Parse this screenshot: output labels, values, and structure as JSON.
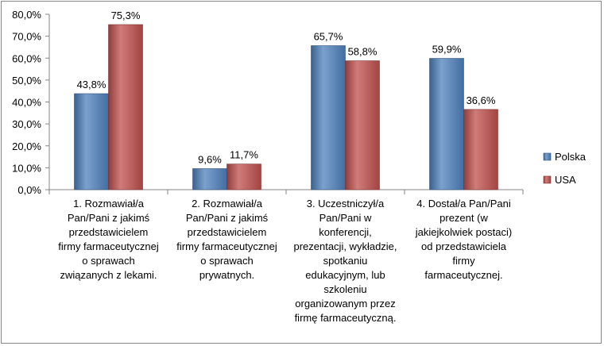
{
  "chart_data": {
    "type": "bar",
    "categories": [
      [
        "1. Rozmawiał/a",
        "Pan/Pani z jakimś",
        "przedstawicielem",
        "firmy farmaceutycznej",
        "o sprawach",
        "związanych z lekami."
      ],
      [
        "2. Rozmawiał/a",
        "Pan/Pani z jakimś",
        "przedstawicielem",
        "firmy farmaceutycznej",
        "o sprawach",
        "prywatnych."
      ],
      [
        "3. Uczestniczył/a",
        "Pan/Pani w",
        "konferencji,",
        "prezentacji, wykładzie,",
        "spotkaniu",
        "edukacyjnym, lub",
        "szkoleniu",
        "organizowanym przez",
        "firmę farmaceutyczną."
      ],
      [
        "4. Dostał/a Pan/Pani",
        "prezent (w",
        "jakiejkolwiek postaci)",
        "od przedstawiciela",
        "firmy",
        "farmaceutycznej."
      ]
    ],
    "series": [
      {
        "name": "Polska",
        "color": "#4F81BD",
        "values": [
          43.8,
          9.6,
          65.7,
          59.9
        ],
        "labels": [
          "43,8%",
          "9,6%",
          "65,7%",
          "59,9%"
        ]
      },
      {
        "name": "USA",
        "color": "#C0504D",
        "values": [
          75.3,
          11.7,
          58.8,
          36.6
        ],
        "labels": [
          "75,3%",
          "11,7%",
          "58,8%",
          "36,6%"
        ]
      }
    ],
    "ylim": [
      0,
      80
    ],
    "yticks": [
      0,
      10,
      20,
      30,
      40,
      50,
      60,
      70,
      80
    ],
    "ytick_labels": [
      "0,0%",
      "10,0%",
      "20,0%",
      "30,0%",
      "40,0%",
      "50,0%",
      "60,0%",
      "70,0%",
      "80,0%"
    ],
    "grid": false,
    "legend_position": "right",
    "title": "",
    "xlabel": "",
    "ylabel": ""
  }
}
